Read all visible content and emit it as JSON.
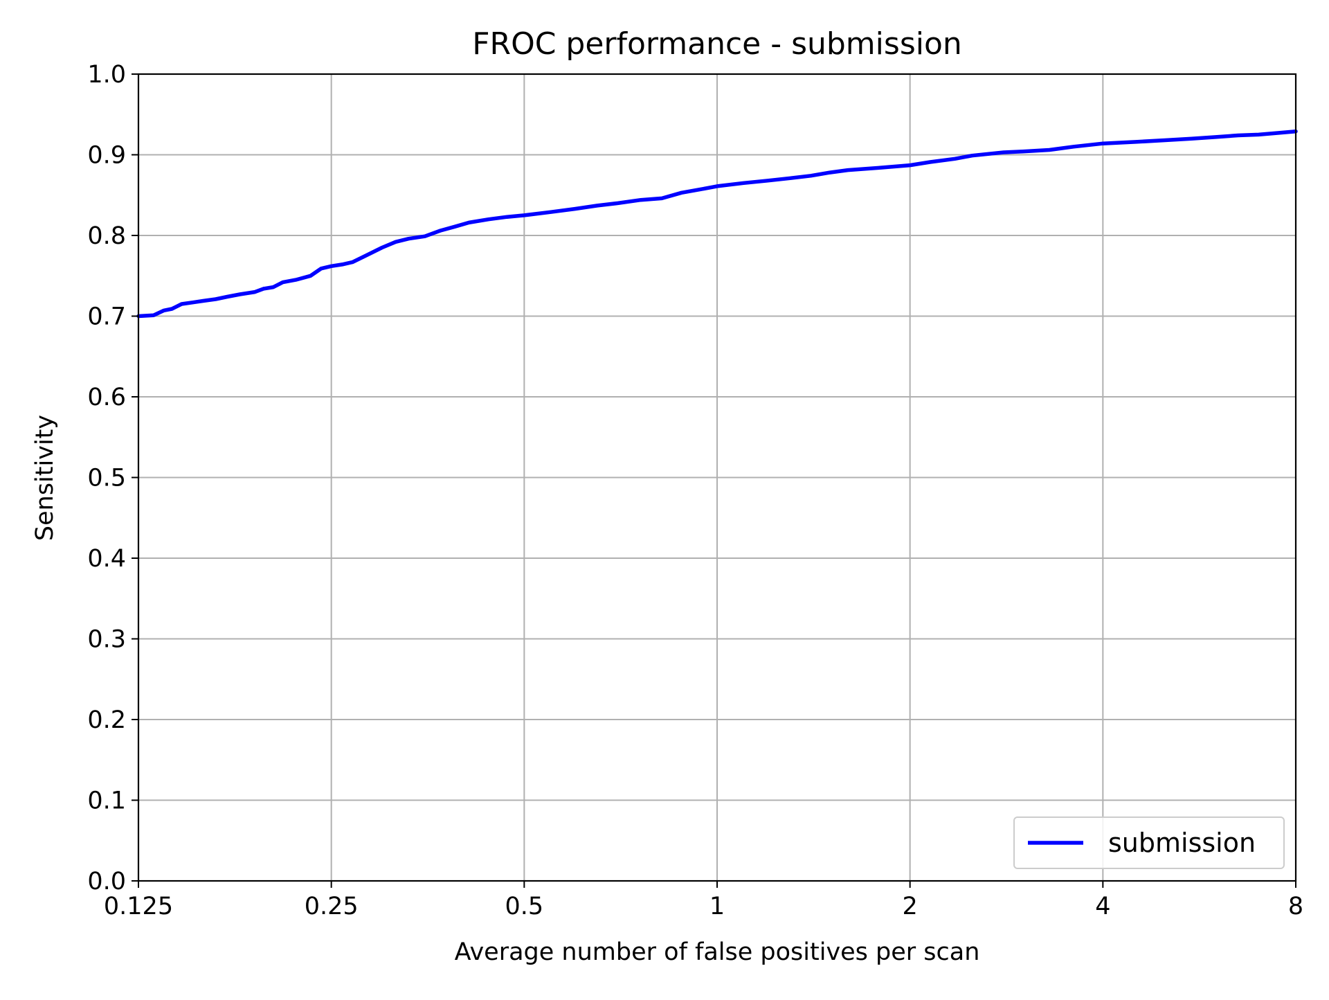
{
  "chart_data": {
    "type": "line",
    "title": "FROC performance - submission",
    "xlabel": "Average number of false positives per scan",
    "ylabel": "Sensitivity",
    "x_scale": "log2",
    "xlim": [
      0.125,
      8
    ],
    "ylim": [
      0.0,
      1.0
    ],
    "x_ticks": [
      0.125,
      0.25,
      0.5,
      1,
      2,
      4,
      8
    ],
    "x_tick_labels": [
      "0.125",
      "0.25",
      "0.5",
      "1",
      "2",
      "4",
      "8"
    ],
    "y_ticks": [
      0.0,
      0.1,
      0.2,
      0.3,
      0.4,
      0.5,
      0.6,
      0.7,
      0.8,
      0.9,
      1.0
    ],
    "y_tick_labels": [
      "0.0",
      "0.1",
      "0.2",
      "0.3",
      "0.4",
      "0.5",
      "0.6",
      "0.7",
      "0.8",
      "0.9",
      "1.0"
    ],
    "grid": true,
    "legend_position": "lower-right",
    "series": [
      {
        "name": "submission",
        "color": "#0000ff",
        "x": [
          0.125,
          0.132,
          0.137,
          0.141,
          0.146,
          0.152,
          0.158,
          0.165,
          0.172,
          0.18,
          0.19,
          0.196,
          0.203,
          0.21,
          0.22,
          0.232,
          0.241,
          0.25,
          0.26,
          0.27,
          0.283,
          0.3,
          0.315,
          0.33,
          0.35,
          0.37,
          0.39,
          0.41,
          0.44,
          0.47,
          0.5,
          0.55,
          0.6,
          0.65,
          0.7,
          0.76,
          0.82,
          0.88,
          0.94,
          1.0,
          1.1,
          1.2,
          1.3,
          1.4,
          1.5,
          1.6,
          1.8,
          2.0,
          2.15,
          2.35,
          2.5,
          2.8,
          3.0,
          3.3,
          3.6,
          4.0,
          4.5,
          5.0,
          5.5,
          6.0,
          6.5,
          7.0,
          7.5,
          8.0
        ],
        "y": [
          0.7,
          0.701,
          0.707,
          0.709,
          0.715,
          0.717,
          0.719,
          0.721,
          0.724,
          0.727,
          0.73,
          0.734,
          0.736,
          0.742,
          0.745,
          0.75,
          0.759,
          0.762,
          0.764,
          0.767,
          0.775,
          0.785,
          0.792,
          0.796,
          0.799,
          0.806,
          0.811,
          0.816,
          0.82,
          0.823,
          0.825,
          0.829,
          0.833,
          0.837,
          0.84,
          0.844,
          0.846,
          0.853,
          0.857,
          0.861,
          0.865,
          0.868,
          0.871,
          0.874,
          0.878,
          0.881,
          0.884,
          0.887,
          0.891,
          0.895,
          0.899,
          0.903,
          0.904,
          0.906,
          0.91,
          0.914,
          0.916,
          0.918,
          0.92,
          0.922,
          0.924,
          0.925,
          0.927,
          0.929
        ]
      }
    ]
  }
}
